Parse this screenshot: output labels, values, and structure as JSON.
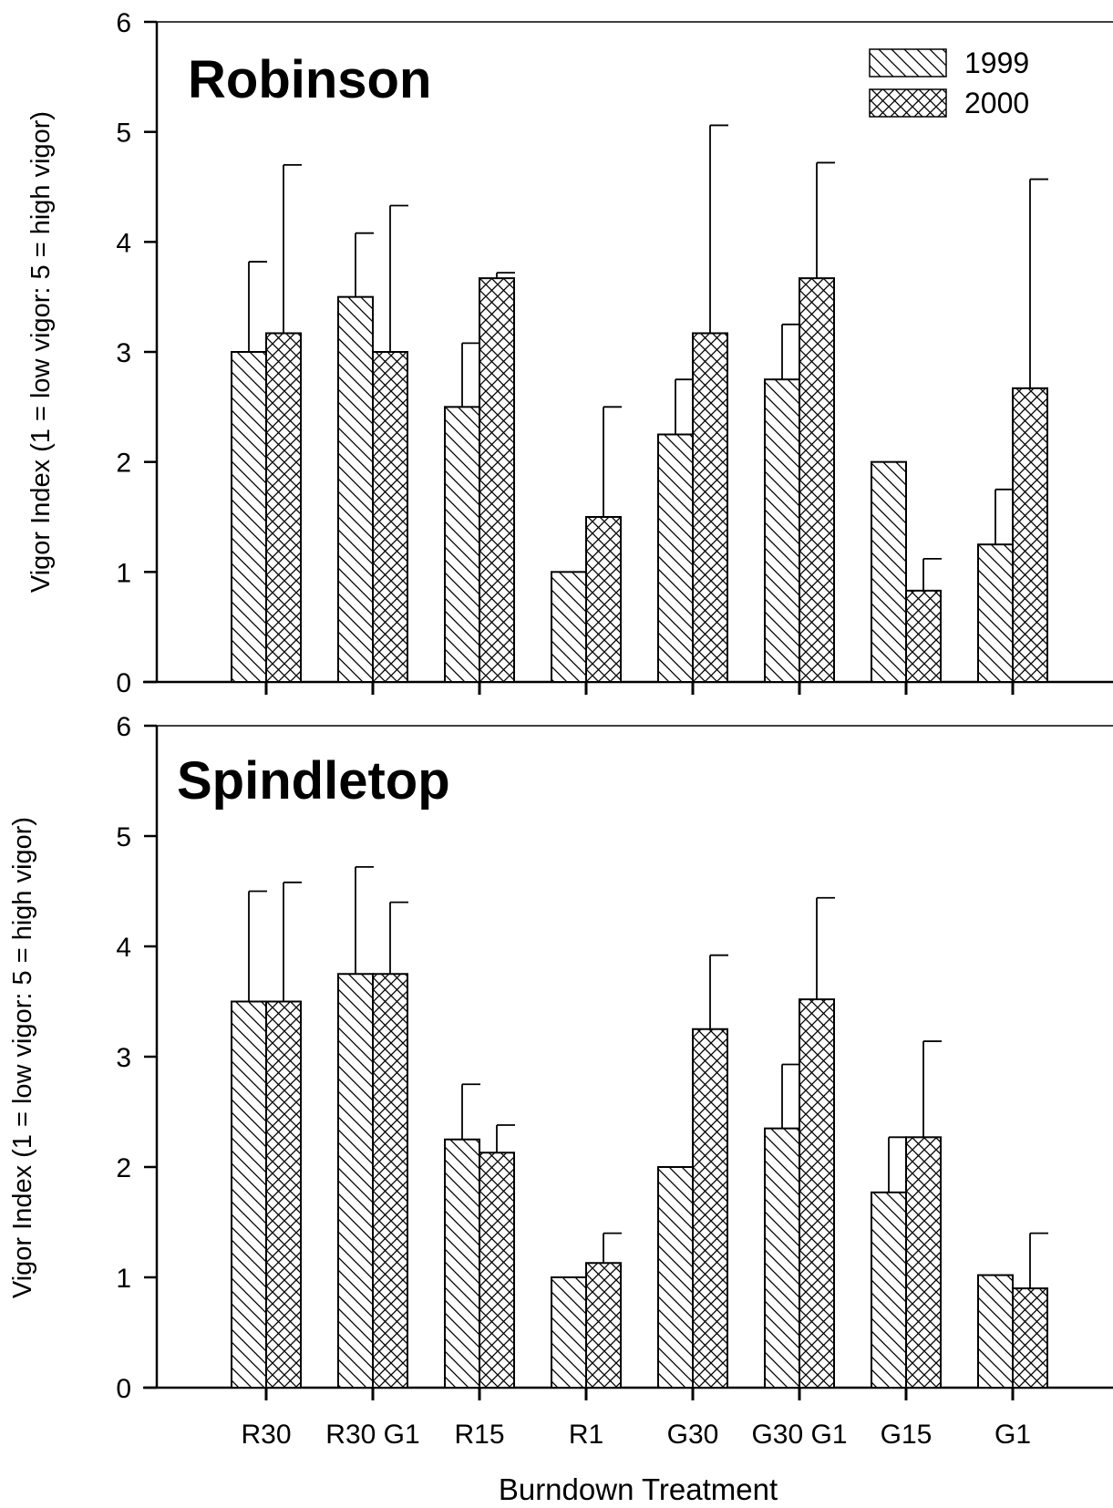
{
  "chart_data": [
    {
      "type": "bar",
      "title": "Robinson",
      "xlabel": "",
      "ylabel": "Vigor Index (1 = low vigor: 5 = high vigor)",
      "ylim": [
        0,
        6
      ],
      "yticks": [
        0,
        1,
        2,
        3,
        4,
        5,
        6
      ],
      "categories": [
        "R30",
        "R30 G1",
        "R15",
        "R1",
        "G30",
        "G30 G1",
        "G15",
        "G1"
      ],
      "legend": {
        "position": "top-right",
        "entries": [
          "1999",
          "2000"
        ]
      },
      "series": [
        {
          "name": "1999",
          "pattern": "diagonal-hatch",
          "values": [
            3.0,
            3.5,
            2.5,
            1.0,
            2.25,
            2.75,
            2.0,
            1.25
          ],
          "errors": [
            0.82,
            0.58,
            0.58,
            0.0,
            0.5,
            0.5,
            0.0,
            0.5
          ]
        },
        {
          "name": "2000",
          "pattern": "cross-hatch",
          "values": [
            3.17,
            3.0,
            3.67,
            1.5,
            3.17,
            3.67,
            0.83,
            2.67
          ],
          "errors": [
            1.53,
            1.33,
            0.05,
            1.0,
            1.89,
            1.05,
            0.29,
            1.9
          ]
        }
      ]
    },
    {
      "type": "bar",
      "title": "Spindletop",
      "xlabel": "Burndown Treatment",
      "ylabel": "Vigor Index (1 = low vigor: 5 = high vigor)",
      "ylim": [
        0,
        6
      ],
      "yticks": [
        0,
        1,
        2,
        3,
        4,
        5,
        6
      ],
      "categories": [
        "R30",
        "R30 G1",
        "R15",
        "R1",
        "G30",
        "G30 G1",
        "G15",
        "G1"
      ],
      "series": [
        {
          "name": "1999",
          "pattern": "diagonal-hatch",
          "values": [
            3.5,
            3.75,
            2.25,
            1.0,
            2.0,
            2.35,
            1.77,
            1.02
          ],
          "errors": [
            1.0,
            0.97,
            0.5,
            0.0,
            0.0,
            0.58,
            0.5,
            0.0
          ]
        },
        {
          "name": "2000",
          "pattern": "cross-hatch",
          "values": [
            3.5,
            3.75,
            2.13,
            1.13,
            3.25,
            3.52,
            2.27,
            0.9
          ],
          "errors": [
            1.08,
            0.65,
            0.25,
            0.27,
            0.67,
            0.92,
            0.87,
            0.5
          ]
        }
      ]
    }
  ]
}
